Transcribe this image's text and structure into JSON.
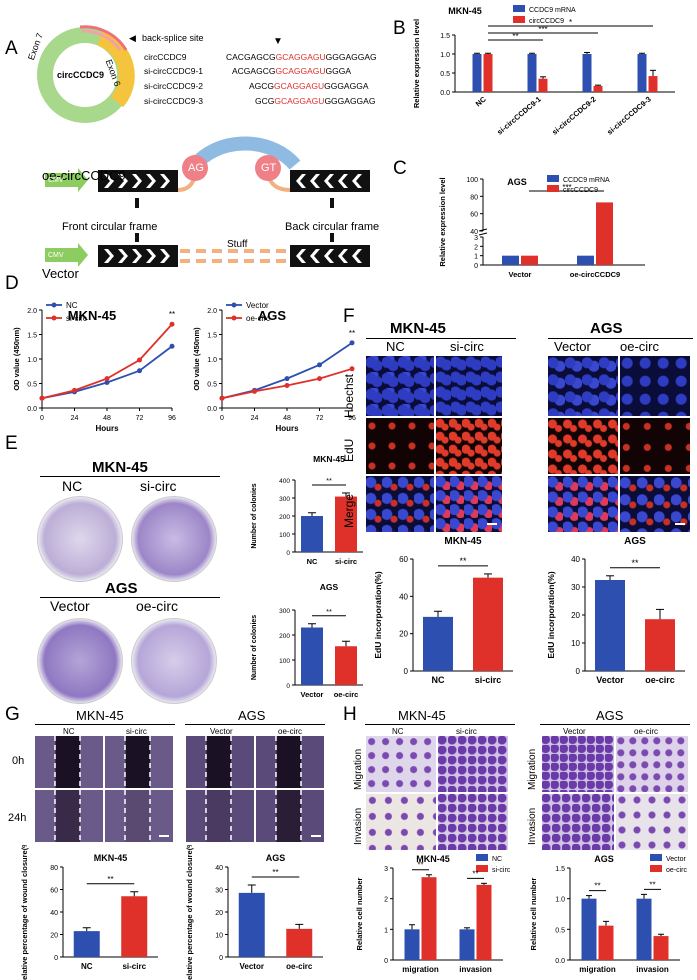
{
  "panels": {
    "A": {
      "letter": "A",
      "circ_center_label": "circCCDC9",
      "exon7": "Exon 7",
      "exon6": "Exon 6",
      "back_splice": "back-splice site",
      "seq_rows": [
        {
          "name": "circCCDC9",
          "pre": "CACGAGCG",
          "red": "GCAGGAGU",
          "post": "GGGAGGAG"
        },
        {
          "name": "si-circCCDC9-1",
          "pre": "ACGAGCG",
          "red": "GCAGGAGU",
          "post": "GGGA"
        },
        {
          "name": "si-circCCDC9-2",
          "pre": "AGCG",
          "red": "GCAGGAGU",
          "post": "GGGAGGA"
        },
        {
          "name": "si-circCCDC9-3",
          "pre": "GCG",
          "red": "GCAGGAGU",
          "post": "GGGAGGAG"
        }
      ],
      "oe_label": "oe-circCCDC9",
      "vector_label": "Vector",
      "cmv": "CMV",
      "ag": "AG",
      "gt": "GT",
      "front_frame": "Front circular frame",
      "back_frame": "Back circular frame",
      "stuff": "Stuff"
    },
    "B": {
      "letter": "B",
      "title": "MKN-45",
      "ylabel": "Relative expression level",
      "legend": [
        "CCDC9 mRNA",
        "circCCDC9"
      ],
      "categories": [
        "NC",
        "si-circCCDC9-1",
        "si-circCCDC9-2",
        "si-circCCDC9-3"
      ],
      "yticks": [
        "0.0",
        "0.5",
        "1.0",
        "1.5"
      ],
      "sig": [
        "**",
        "***",
        "*"
      ]
    },
    "C": {
      "letter": "C",
      "title": "AGS",
      "ylabel": "Relative expression level",
      "legend": [
        "CCDC9 mRNA",
        "circCCDC9"
      ],
      "categories": [
        "Vector",
        "oe-circCCDC9"
      ],
      "yticks": [
        "0",
        "1",
        "2",
        "3",
        "40",
        "60",
        "80",
        "100"
      ],
      "sig": "***"
    },
    "D": {
      "letter": "D",
      "left": {
        "title": "MKN-45",
        "legend": [
          "NC",
          "si-circ"
        ],
        "sig": "**"
      },
      "right": {
        "title": "AGS",
        "legend": [
          "Vector",
          "oe-circ"
        ],
        "sig": "**"
      },
      "ylabel": "OD value (450nm)",
      "xlabel": "Hours",
      "xticks": [
        "0",
        "24",
        "48",
        "72",
        "96"
      ],
      "yticks": [
        "0.0",
        "0.5",
        "1.0",
        "1.5",
        "2.0"
      ]
    },
    "E": {
      "letter": "E",
      "mkn_title": "MKN-45",
      "mkn_labels": [
        "NC",
        "si-circ"
      ],
      "ags_title": "AGS",
      "ags_labels": [
        "Vector",
        "oe-circ"
      ],
      "ylabel": "Number of colonies",
      "chart1": {
        "title": "MKN-45",
        "yticks": [
          "0",
          "100",
          "200",
          "300",
          "400"
        ],
        "categories": [
          "NC",
          "si-circ"
        ],
        "sig": "**"
      },
      "chart2": {
        "title": "AGS",
        "yticks": [
          "0",
          "100",
          "200",
          "300"
        ],
        "categories": [
          "Vector",
          "oe-circ"
        ],
        "sig": "**"
      }
    },
    "F": {
      "letter": "F",
      "mkn_title": "MKN-45",
      "ags_title": "AGS",
      "cols": [
        "NC",
        "si-circ",
        "Vector",
        "oe-circ"
      ],
      "rows": [
        "Hoechst",
        "EdU",
        "Merge"
      ],
      "ylabel": "EdU incorporation(%)",
      "chart1": {
        "title": "MKN-45",
        "yticks": [
          "0",
          "20",
          "40",
          "60"
        ],
        "categories": [
          "NC",
          "si-circ"
        ],
        "sig": "**"
      },
      "chart2": {
        "title": "AGS",
        "yticks": [
          "0",
          "10",
          "20",
          "30",
          "40"
        ],
        "categories": [
          "Vector",
          "oe-circ"
        ],
        "sig": "**"
      }
    },
    "G": {
      "letter": "G",
      "mkn_title": "MKN-45",
      "ags_title": "AGS",
      "cols": [
        "NC",
        "si-circ",
        "Vector",
        "oe-circ"
      ],
      "rows": [
        "0h",
        "24h"
      ],
      "ylabel": "Relative percentage of wound closure(%)",
      "chart1": {
        "title": "MKN-45",
        "yticks": [
          "0",
          "20",
          "40",
          "60",
          "80"
        ],
        "categories": [
          "NC",
          "si-circ"
        ],
        "sig": "**"
      },
      "chart2": {
        "title": "AGS",
        "yticks": [
          "0",
          "10",
          "20",
          "30",
          "40"
        ],
        "categories": [
          "Vector",
          "oe-circ"
        ],
        "sig": "**"
      }
    },
    "H": {
      "letter": "H",
      "mkn_title": "MKN-45",
      "ags_title": "AGS",
      "cols": [
        "NC",
        "si-circ",
        "Vector",
        "oe-circ"
      ],
      "rows": [
        "Migration",
        "Invasion"
      ],
      "ylabel": "Relative cell number",
      "chart1": {
        "title": "MKN-45",
        "legend": [
          "NC",
          "si-circ"
        ],
        "yticks": [
          "0",
          "1",
          "2",
          "3"
        ],
        "categories": [
          "migration",
          "invasion"
        ],
        "sig": [
          "**",
          "**"
        ]
      },
      "chart2": {
        "title": "AGS",
        "legend": [
          "Vector",
          "oe-circ"
        ],
        "yticks": [
          "0.0",
          "0.5",
          "1.0",
          "1.5"
        ],
        "categories": [
          "migration",
          "invasion"
        ],
        "sig": [
          "**",
          "**"
        ]
      }
    }
  },
  "colors": {
    "blue": "#2d4fb0",
    "red": "#e0302a",
    "purple": "#6b4aa0"
  },
  "chart_data": [
    {
      "id": "B",
      "type": "bar",
      "categories": [
        "NC",
        "si-circCCDC9-1",
        "si-circCCDC9-2",
        "si-circCCDC9-3"
      ],
      "series": [
        {
          "name": "CCDC9 mRNA",
          "values": [
            1.0,
            1.0,
            1.0,
            1.0
          ],
          "err": [
            0.02,
            0.02,
            0.04,
            0.02
          ]
        },
        {
          "name": "circCCDC9",
          "values": [
            1.0,
            0.35,
            0.16,
            0.42
          ],
          "err": [
            0.02,
            0.05,
            0.02,
            0.15
          ]
        }
      ],
      "ylim": [
        0,
        1.5
      ],
      "title": "MKN-45",
      "ylabel": "Relative expression level"
    },
    {
      "id": "C",
      "type": "bar",
      "categories": [
        "Vector",
        "oe-circCCDC9"
      ],
      "series": [
        {
          "name": "CCDC9 mRNA",
          "values": [
            1.0,
            1.0
          ]
        },
        {
          "name": "circCCDC9",
          "values": [
            1.0,
            73
          ]
        }
      ],
      "title": "AGS",
      "ylabel": "Relative expression level"
    },
    {
      "id": "D1",
      "type": "line",
      "x": [
        0,
        24,
        48,
        72,
        96
      ],
      "series": [
        {
          "name": "NC",
          "values": [
            0.2,
            0.33,
            0.52,
            0.76,
            1.26
          ]
        },
        {
          "name": "si-circ",
          "values": [
            0.2,
            0.36,
            0.6,
            0.98,
            1.71
          ]
        }
      ],
      "title": "MKN-45",
      "xlabel": "Hours",
      "ylabel": "OD value (450nm)",
      "ylim": [
        0,
        2.0
      ]
    },
    {
      "id": "D2",
      "type": "line",
      "x": [
        0,
        24,
        48,
        72,
        96
      ],
      "series": [
        {
          "name": "Vector",
          "values": [
            0.2,
            0.36,
            0.6,
            0.88,
            1.33
          ]
        },
        {
          "name": "oe-circ",
          "values": [
            0.2,
            0.34,
            0.46,
            0.6,
            0.8
          ]
        }
      ],
      "title": "AGS",
      "xlabel": "Hours",
      "ylabel": "OD value (450nm)",
      "ylim": [
        0,
        2.0
      ]
    },
    {
      "id": "E1",
      "type": "bar",
      "categories": [
        "NC",
        "si-circ"
      ],
      "values": [
        200,
        308
      ],
      "err": [
        18,
        20
      ],
      "ylim": [
        0,
        400
      ],
      "title": "MKN-45",
      "ylabel": "Number of colonies"
    },
    {
      "id": "E2",
      "type": "bar",
      "categories": [
        "Vector",
        "oe-circ"
      ],
      "values": [
        230,
        155
      ],
      "err": [
        15,
        20
      ],
      "ylim": [
        0,
        300
      ],
      "title": "AGS",
      "ylabel": "Number of colonies"
    },
    {
      "id": "F1",
      "type": "bar",
      "categories": [
        "NC",
        "si-circ"
      ],
      "values": [
        29,
        50
      ],
      "err": [
        3,
        2
      ],
      "ylim": [
        0,
        60
      ],
      "title": "MKN-45",
      "ylabel": "EdU incorporation(%)"
    },
    {
      "id": "F2",
      "type": "bar",
      "categories": [
        "Vector",
        "oe-circ"
      ],
      "values": [
        32.5,
        18.5
      ],
      "err": [
        1.5,
        3.5
      ],
      "ylim": [
        0,
        40
      ],
      "title": "AGS",
      "ylabel": "EdU incorporation(%)"
    },
    {
      "id": "G1",
      "type": "bar",
      "categories": [
        "NC",
        "si-circ"
      ],
      "values": [
        23,
        54
      ],
      "err": [
        3,
        4
      ],
      "ylim": [
        0,
        80
      ],
      "title": "MKN-45",
      "ylabel": "Relative percentage of wound closure(%)"
    },
    {
      "id": "G2",
      "type": "bar",
      "categories": [
        "Vector",
        "oe-circ"
      ],
      "values": [
        28.5,
        12.5
      ],
      "err": [
        3.5,
        2
      ],
      "ylim": [
        0,
        40
      ],
      "title": "AGS",
      "ylabel": "Relative percentage of wound closure(%)"
    },
    {
      "id": "H1",
      "type": "bar",
      "categories": [
        "migration",
        "invasion"
      ],
      "series": [
        {
          "name": "NC",
          "values": [
            1.0,
            1.0
          ],
          "err": [
            0.15,
            0.05
          ]
        },
        {
          "name": "si-circ",
          "values": [
            2.7,
            2.45
          ],
          "err": [
            0.08,
            0.05
          ]
        }
      ],
      "ylim": [
        0,
        3
      ],
      "title": "MKN-45",
      "ylabel": "Relative cell number"
    },
    {
      "id": "H2",
      "type": "bar",
      "categories": [
        "migration",
        "invasion"
      ],
      "series": [
        {
          "name": "Vector",
          "values": [
            1.0,
            1.0
          ],
          "err": [
            0.05,
            0.07
          ]
        },
        {
          "name": "oe-circ",
          "values": [
            0.56,
            0.39
          ],
          "err": [
            0.07,
            0.03
          ]
        }
      ],
      "ylim": [
        0,
        1.5
      ],
      "title": "AGS",
      "ylabel": "Relative cell number"
    }
  ]
}
